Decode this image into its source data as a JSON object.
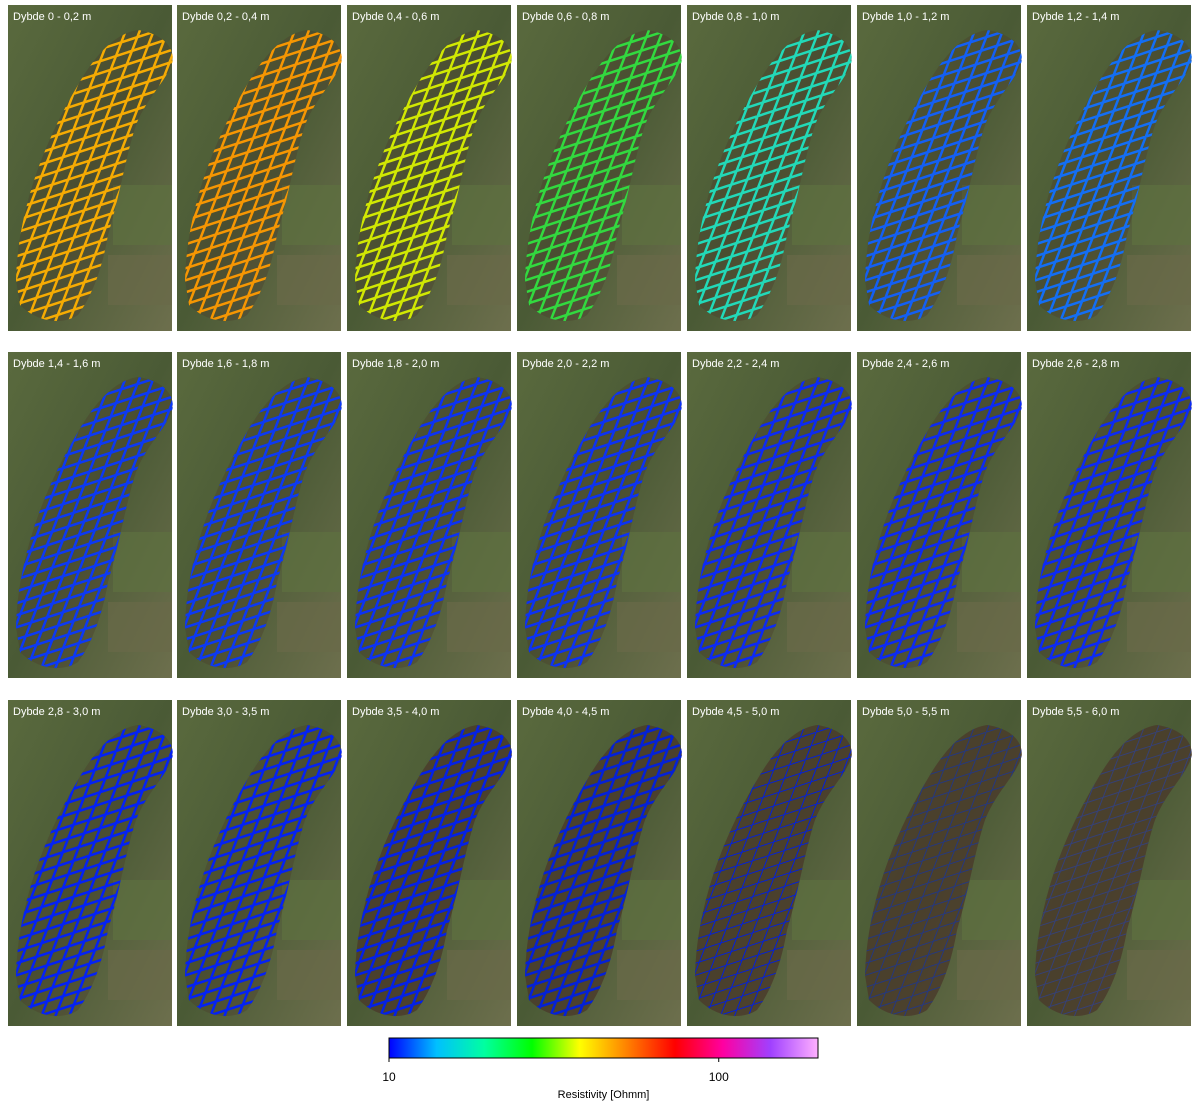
{
  "panels": [
    {
      "label": "Dybde 0 - 0,2 m",
      "color": "#ffb000"
    },
    {
      "label": "Dybde 0,2 - 0,4 m",
      "color": "#ff9a00"
    },
    {
      "label": "Dybde 0,4 - 0,6 m",
      "color": "#d8f000"
    },
    {
      "label": "Dybde 0,6 - 0,8 m",
      "color": "#30e040"
    },
    {
      "label": "Dybde 0,8 - 1,0 m",
      "color": "#20e0c0"
    },
    {
      "label": "Dybde 1,0 - 1,2 m",
      "color": "#1060ff"
    },
    {
      "label": "Dybde 1,2 - 1,4 m",
      "color": "#1070ff"
    },
    {
      "label": "Dybde 1,4 - 1,6 m",
      "color": "#0838ff"
    },
    {
      "label": "Dybde 1,6 - 1,8 m",
      "color": "#0838ff"
    },
    {
      "label": "Dybde 1,8 - 2,0 m",
      "color": "#0830ff"
    },
    {
      "label": "Dybde 2,0 - 2,2 m",
      "color": "#0830ff"
    },
    {
      "label": "Dybde 2,2 - 2,4 m",
      "color": "#0828ff"
    },
    {
      "label": "Dybde 2,4 - 2,6 m",
      "color": "#0828ff"
    },
    {
      "label": "Dybde 2,6 - 2,8 m",
      "color": "#0828ff"
    },
    {
      "label": "Dybde 2,8 - 3,0 m",
      "color": "#0020ff"
    },
    {
      "label": "Dybde 3,0 - 3,5 m",
      "color": "#0020ff"
    },
    {
      "label": "Dybde 3,5 - 4,0 m",
      "color": "#0020f0"
    },
    {
      "label": "Dybde 4,0 - 4,5 m",
      "color": "#0020e0"
    },
    {
      "label": "Dybde 4,5 - 5,0 m",
      "color": "#0020e0"
    },
    {
      "label": "Dybde 5,0 - 5,5 m",
      "color": "#0030d0"
    },
    {
      "label": "Dybde 5,5 - 6,0 m",
      "color": "#2040c0"
    }
  ],
  "colorbar": {
    "label": "Resistivity [Ohmm]",
    "log": true,
    "lim": [
      10,
      200
    ],
    "ticks": [
      10,
      100
    ],
    "colors": [
      "#0000ff",
      "#00c0ff",
      "#00ffa0",
      "#00ff00",
      "#ffff00",
      "#ff8000",
      "#ff0000",
      "#ff00a0",
      "#a040ff",
      "#ffb0ff"
    ]
  }
}
